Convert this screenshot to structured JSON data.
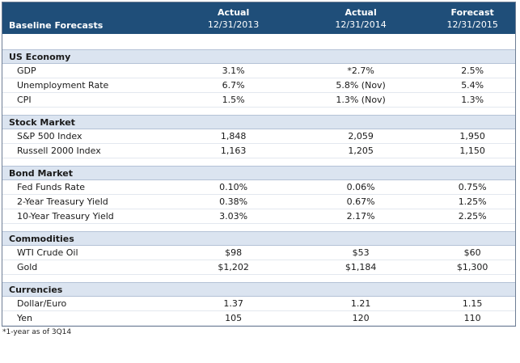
{
  "header": {
    "title": "Baseline Forecasts",
    "col1": {
      "kind": "Actual",
      "date": "12/31/2013"
    },
    "col2": {
      "kind": "Actual",
      "date": "12/31/2014"
    },
    "col3": {
      "kind": "Forecast",
      "date": "12/31/2015"
    }
  },
  "sections": [
    {
      "title": "US Economy",
      "rows": [
        {
          "label": "GDP",
          "v1": "3.1%",
          "v2": "*2.7%",
          "v3": "2.5%"
        },
        {
          "label": "Unemployment Rate",
          "v1": "6.7%",
          "v2": "5.8% (Nov)",
          "v3": "5.4%"
        },
        {
          "label": "CPI",
          "v1": "1.5%",
          "v2": "1.3% (Nov)",
          "v3": "1.3%"
        }
      ]
    },
    {
      "title": "Stock Market",
      "rows": [
        {
          "label": "S&P 500 Index",
          "v1": "1,848",
          "v2": "2,059",
          "v3": "1,950"
        },
        {
          "label": "Russell 2000 Index",
          "v1": "1,163",
          "v2": "1,205",
          "v3": "1,150"
        }
      ]
    },
    {
      "title": "Bond Market",
      "rows": [
        {
          "label": "Fed Funds Rate",
          "v1": "0.10%",
          "v2": "0.06%",
          "v3": "0.75%"
        },
        {
          "label": "2-Year Treasury Yield",
          "v1": "0.38%",
          "v2": "0.67%",
          "v3": "1.25%"
        },
        {
          "label": "10-Year Treasury Yield",
          "v1": "3.03%",
          "v2": "2.17%",
          "v3": "2.25%"
        }
      ]
    },
    {
      "title": "Commodities",
      "rows": [
        {
          "label": "WTI Crude Oil",
          "v1": "$98",
          "v2": "$53",
          "v3": "$60"
        },
        {
          "label": "Gold",
          "v1": "$1,202",
          "v2": "$1,184",
          "v3": "$1,300"
        }
      ]
    },
    {
      "title": "Currencies",
      "rows": [
        {
          "label": "Dollar/Euro",
          "v1": "1.37",
          "v2": "1.21",
          "v3": "1.15"
        },
        {
          "label": "Yen",
          "v1": "105",
          "v2": "120",
          "v3": "110"
        }
      ]
    }
  ],
  "footnote": "*1-year as of 3Q14"
}
